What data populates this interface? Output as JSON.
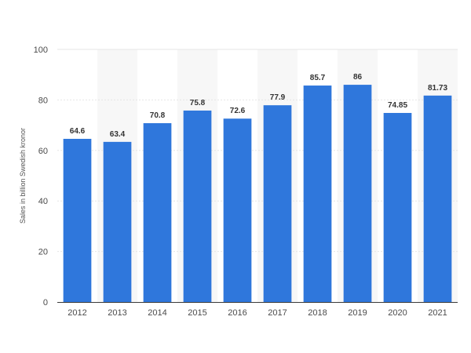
{
  "chart_data": {
    "type": "bar",
    "categories": [
      "2012",
      "2013",
      "2014",
      "2015",
      "2016",
      "2017",
      "2018",
      "2019",
      "2020",
      "2021"
    ],
    "series": [
      {
        "values": [
          64.6,
          63.4,
          70.8,
          75.8,
          72.6,
          77.9,
          85.7,
          86,
          74.85,
          81.73
        ]
      }
    ],
    "value_labels": [
      "64.6",
      "63.4",
      "70.8",
      "75.8",
      "72.6",
      "77.9",
      "85.7",
      "86",
      "74.85",
      "81.73"
    ],
    "ylabel": "Sales in billion Swedish kronor",
    "xlabel": "",
    "title": "",
    "ylim": [
      0,
      100
    ],
    "yticks": [
      0,
      20,
      40,
      60,
      80,
      100
    ],
    "ytick_labels": [
      "0",
      "20",
      "40",
      "60",
      "80",
      "100"
    ],
    "grid": true,
    "legend": "none",
    "colors": {
      "bar": "#2f77dc",
      "band": "#f7f7f7",
      "grid": "#e6e6e6",
      "axis": "#3a3a3a"
    }
  }
}
